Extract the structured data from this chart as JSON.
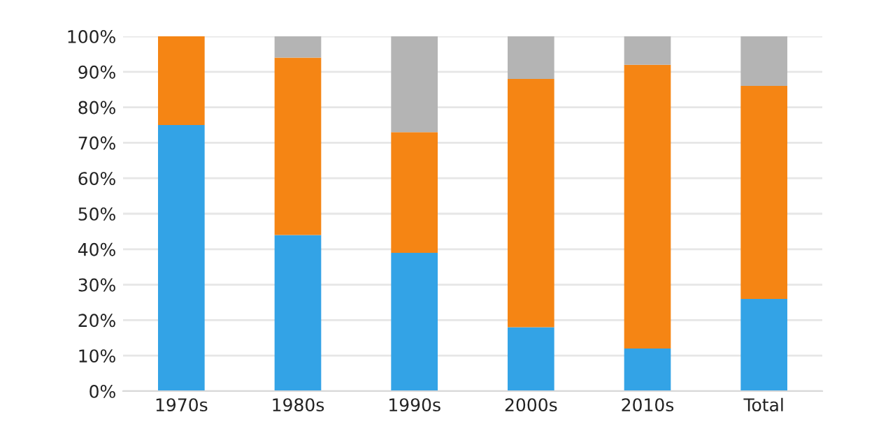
{
  "chart_data": {
    "type": "bar",
    "stacked": true,
    "categories": [
      "1970s",
      "1980s",
      "1990s",
      "2000s",
      "2010s",
      "Total"
    ],
    "series": [
      {
        "color": "#33a3e6",
        "values": [
          75,
          44,
          39,
          18,
          12,
          26
        ]
      },
      {
        "color": "#f58514",
        "values": [
          25,
          50,
          34,
          70,
          80,
          60
        ]
      },
      {
        "color": "#b4b4b4",
        "values": [
          0,
          6,
          27,
          12,
          8,
          14
        ]
      }
    ],
    "ylim": [
      0,
      100
    ],
    "yticks": [
      {
        "value": 0,
        "label": "0%"
      },
      {
        "value": 10,
        "label": "10%"
      },
      {
        "value": 20,
        "label": "20%"
      },
      {
        "value": 30,
        "label": "30%"
      },
      {
        "value": 40,
        "label": "40%"
      },
      {
        "value": 50,
        "label": "50%"
      },
      {
        "value": 60,
        "label": "60%"
      },
      {
        "value": 70,
        "label": "70%"
      },
      {
        "value": 80,
        "label": "80%"
      },
      {
        "value": 90,
        "label": "90%"
      },
      {
        "value": 100,
        "label": "100%"
      }
    ],
    "grid": "y"
  }
}
